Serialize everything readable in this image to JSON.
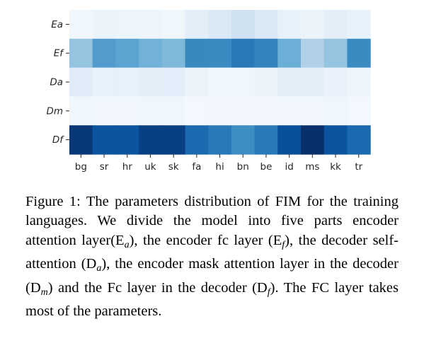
{
  "chart_data": {
    "type": "heatmap",
    "title": "",
    "xlabel": "",
    "ylabel": "",
    "x_categories": [
      "bg",
      "sr",
      "hr",
      "uk",
      "sk",
      "fa",
      "hi",
      "bn",
      "be",
      "id",
      "ms",
      "kk",
      "tr"
    ],
    "y_categories": [
      "Ea",
      "Ef",
      "Da",
      "Dm",
      "Df"
    ],
    "colormap": "Blues",
    "color_range": [
      0,
      1
    ],
    "values": [
      [
        0.04,
        0.06,
        0.05,
        0.05,
        0.04,
        0.1,
        0.14,
        0.2,
        0.14,
        0.08,
        0.06,
        0.1,
        0.08
      ],
      [
        0.4,
        0.58,
        0.55,
        0.48,
        0.45,
        0.66,
        0.65,
        0.72,
        0.68,
        0.5,
        0.32,
        0.4,
        0.65
      ],
      [
        0.12,
        0.08,
        0.08,
        0.1,
        0.11,
        0.06,
        0.04,
        0.04,
        0.06,
        0.1,
        0.1,
        0.07,
        0.05
      ],
      [
        0.04,
        0.03,
        0.03,
        0.04,
        0.04,
        0.02,
        0.03,
        0.03,
        0.03,
        0.03,
        0.03,
        0.04,
        0.02
      ],
      [
        0.97,
        0.86,
        0.86,
        0.94,
        0.94,
        0.78,
        0.72,
        0.64,
        0.72,
        0.88,
        1.0,
        0.86,
        0.78
      ]
    ]
  },
  "caption": {
    "prefix": "Figure 1: The parameters distribution of FIM for the training languages. We divide the model into five parts encoder attention layer(E",
    "sub_ea": "a",
    "part2": "), the encoder fc layer (E",
    "sub_ef": "f",
    "part3": "), the decoder self-attention (D",
    "sub_da": "a",
    "part4": "), the encoder mask atten­tion layer in the decoder (D",
    "sub_dm": "m",
    "part5": ") and the Fc layer in the decoder (D",
    "sub_df": "f",
    "part6": "). The FC layer takes most of the parame­ters."
  }
}
